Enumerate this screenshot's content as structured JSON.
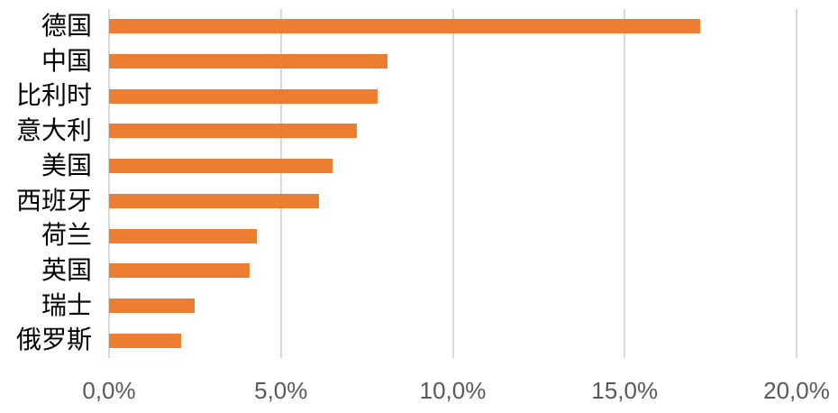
{
  "chart_data": {
    "type": "bar",
    "orientation": "horizontal",
    "categories": [
      "德国",
      "中国",
      "比利时",
      "意大利",
      "美国",
      "西班牙",
      "荷兰",
      "英国",
      "瑞士",
      "俄罗斯"
    ],
    "values": [
      17.2,
      8.1,
      7.8,
      7.2,
      6.5,
      6.1,
      4.3,
      4.1,
      2.5,
      2.1
    ],
    "value_unit": "%",
    "x_tick_labels": [
      "0,0%",
      "5,0%",
      "10,0%",
      "15,0%",
      "20,0%"
    ],
    "x_tick_values": [
      0,
      5,
      10,
      15,
      20
    ],
    "xlim": [
      0,
      20
    ],
    "grid": true,
    "legend": false,
    "colors": {
      "bar": "#ED7D31",
      "gridline": "#D9D9D9",
      "tick_text": "#595959",
      "category_text": "#000000",
      "background": "#FFFFFF"
    }
  }
}
